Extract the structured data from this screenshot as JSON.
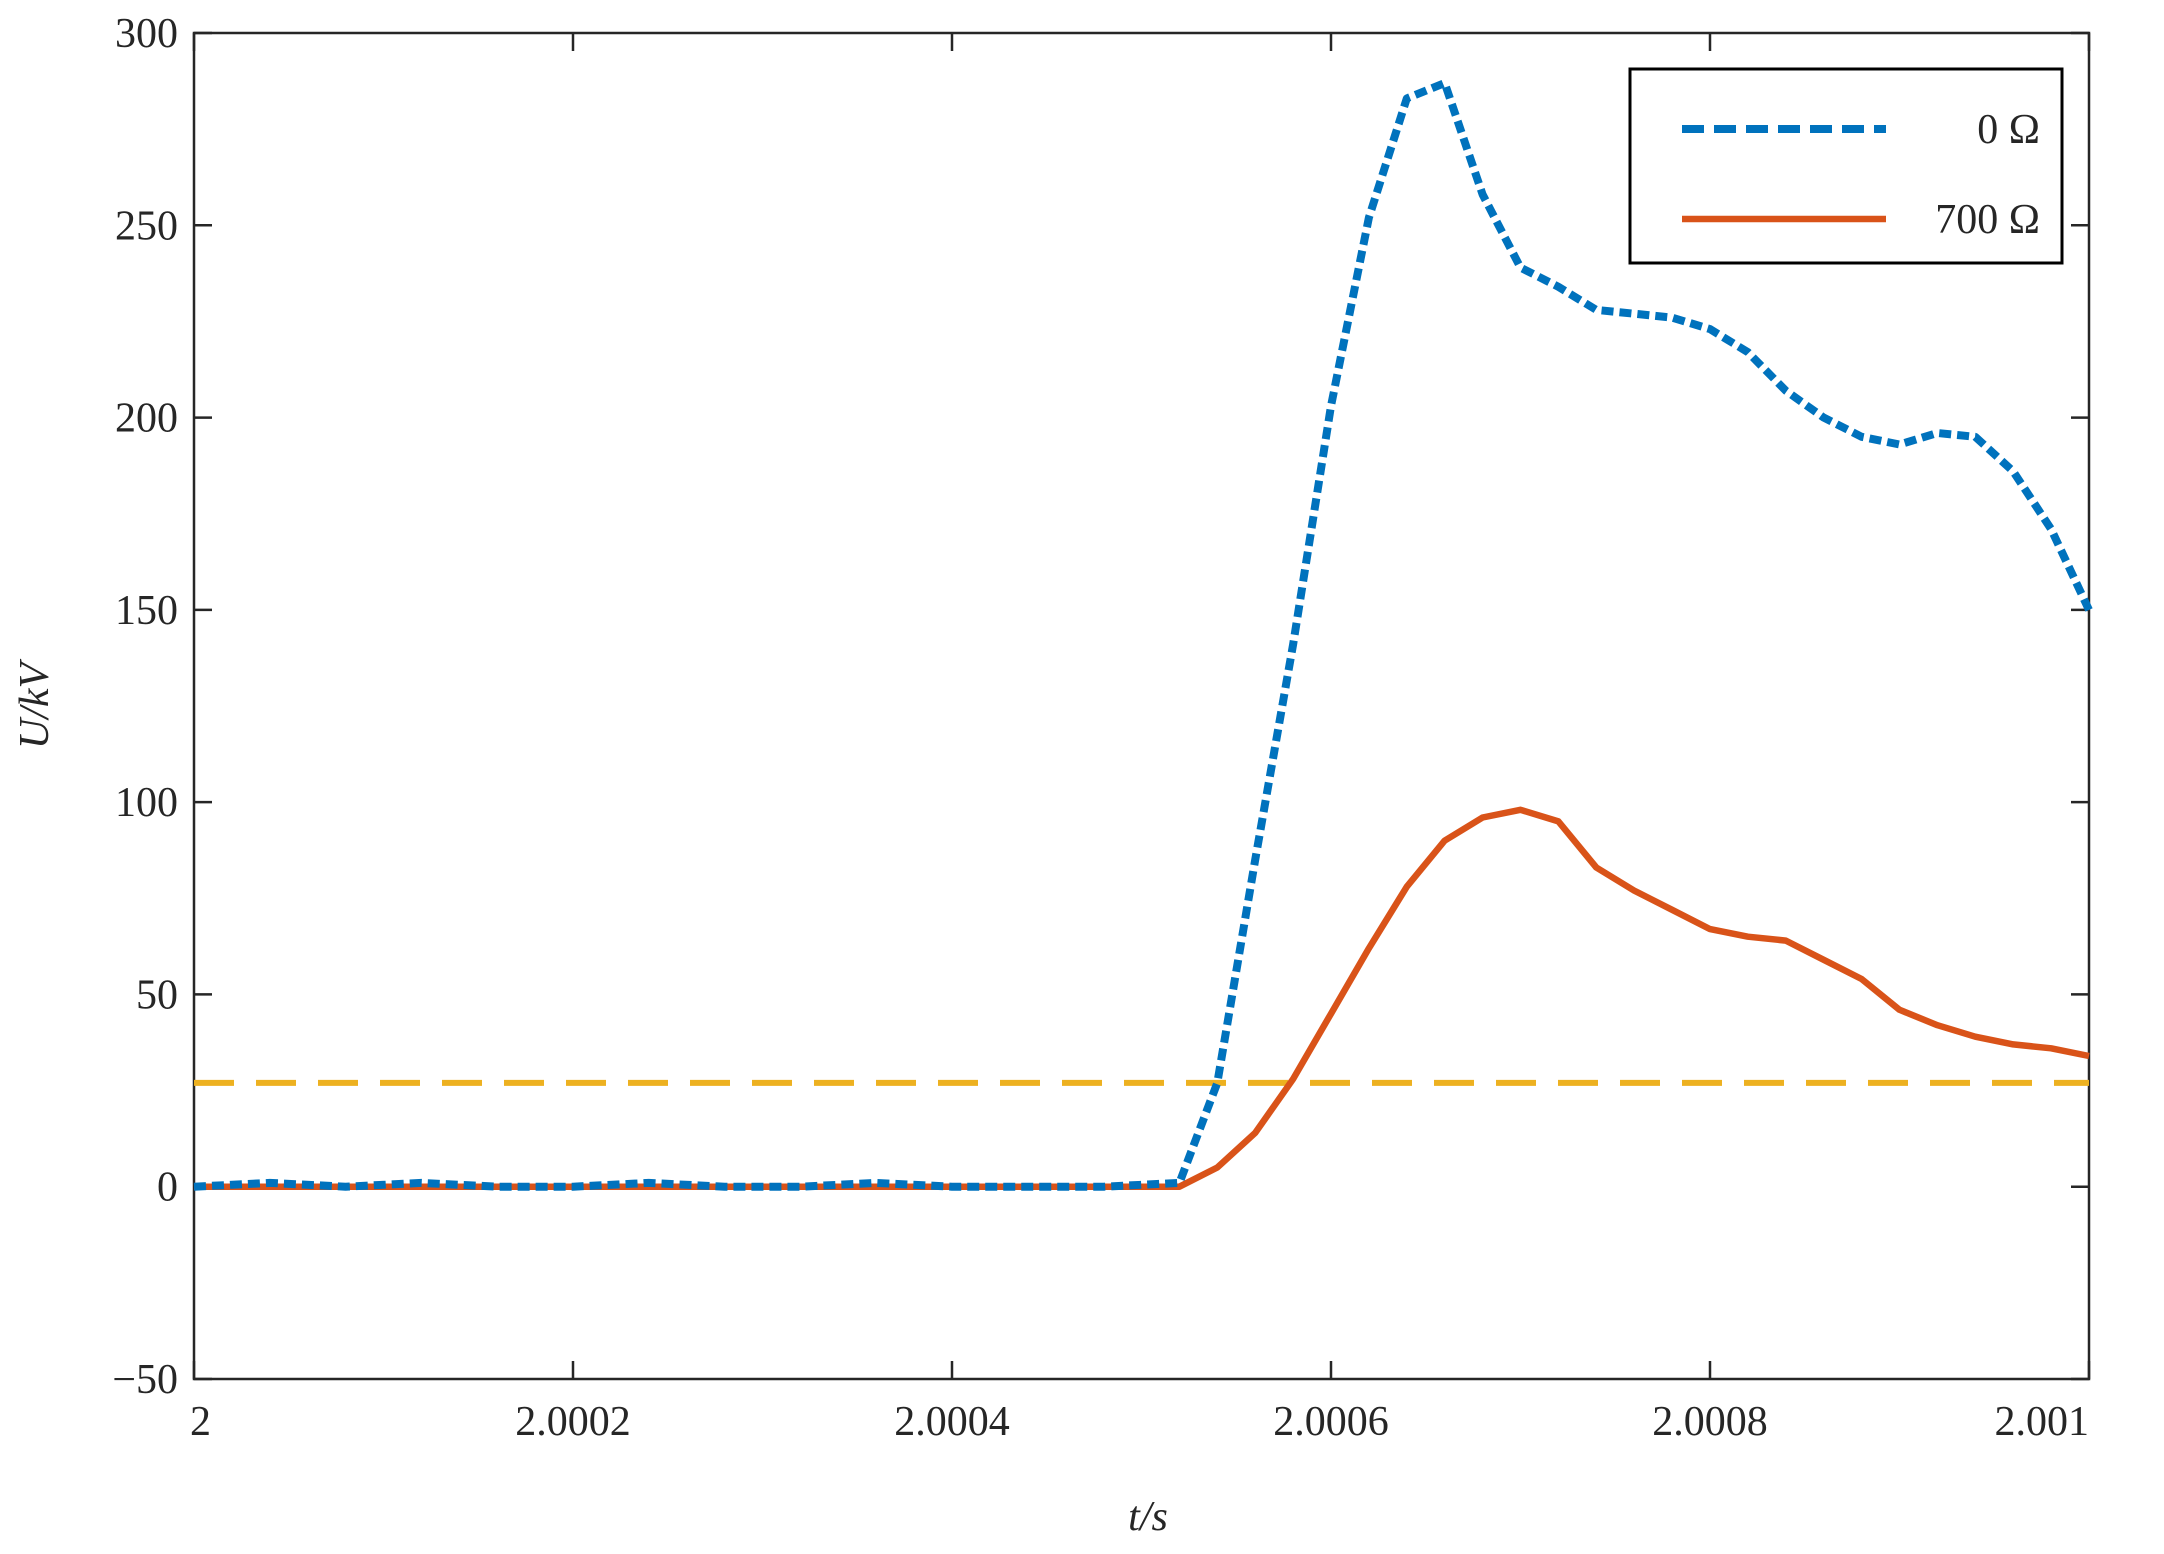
{
  "chart_data": {
    "type": "line",
    "x": [
      2,
      2.00004,
      2.00008,
      2.00012,
      2.00016,
      2.0002,
      2.00024,
      2.00028,
      2.00032,
      2.00036,
      2.0004,
      2.00044,
      2.00048,
      2.00052,
      2.00054,
      2.00056,
      2.00058,
      2.0006,
      2.00062,
      2.00064,
      2.00066,
      2.00068,
      2.0007,
      2.00072,
      2.00074,
      2.00076,
      2.00078,
      2.0008,
      2.00082,
      2.00084,
      2.00086,
      2.00088,
      2.0009,
      2.00092,
      2.00094,
      2.00096,
      2.00098,
      2.001
    ],
    "series": [
      {
        "name": "0 Ω",
        "color": "#0072bd",
        "dash": true,
        "values": [
          0,
          1,
          0,
          1,
          0,
          0,
          1,
          0,
          0,
          1,
          0,
          0,
          0,
          1,
          27,
          85,
          141,
          203,
          252,
          283,
          287,
          258,
          239,
          234,
          228,
          227,
          226,
          223,
          217,
          207,
          200,
          195,
          193,
          196,
          195,
          186,
          171,
          150
        ]
      },
      {
        "name": "700 Ω",
        "color": "#d95319",
        "dash": false,
        "values": [
          0,
          0,
          0,
          0,
          0,
          0,
          0,
          0,
          0,
          0,
          0,
          0,
          0,
          0,
          5,
          14,
          28,
          45,
          62,
          78,
          90,
          96,
          98,
          95,
          83,
          77,
          72,
          67,
          65,
          64,
          59,
          54,
          46,
          42,
          39,
          37,
          36,
          34
        ]
      }
    ],
    "reference_line": {
      "value": 27,
      "color": "#edb120"
    },
    "xlabel": "t/s",
    "ylabel": "U/kV",
    "xlim": [
      2,
      2.001
    ],
    "xticks": [
      2,
      2.0002,
      2.0004,
      2.0006,
      2.0008,
      2.001
    ],
    "ylim": [
      -50,
      300
    ],
    "yticks": [
      {
        "value": -50,
        "label": "−50"
      },
      0,
      50,
      100,
      150,
      200,
      250,
      300
    ],
    "legend": "upper right"
  }
}
